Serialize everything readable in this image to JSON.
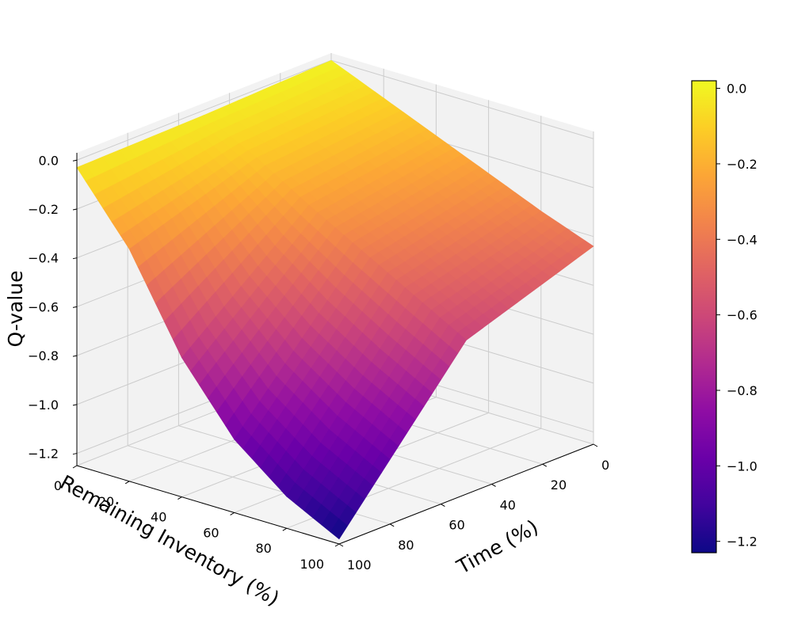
{
  "chart_data": {
    "type": "surface3d",
    "xlabel": "Remaining Inventory (%)",
    "ylabel": "Time (%)",
    "zlabel": "Q-value",
    "x_ticks": [
      0,
      20,
      40,
      60,
      80,
      100
    ],
    "y_ticks": [
      0,
      20,
      40,
      60,
      80,
      100
    ],
    "z_ticks": [
      "0.0",
      "−0.2",
      "−0.4",
      "−0.6",
      "−0.8",
      "−1.0",
      "−1.2"
    ],
    "z_tick_values": [
      0.0,
      -0.2,
      -0.4,
      -0.6,
      -0.8,
      -1.0,
      -1.2
    ],
    "xlim": [
      0,
      100
    ],
    "ylim": [
      0,
      100
    ],
    "zlim": [
      -1.25,
      0.03
    ],
    "colormap": "plasma",
    "colorbar": {
      "range": [
        -1.23,
        0.02
      ],
      "ticks": [
        "0.0",
        "−0.2",
        "−0.4",
        "−0.6",
        "−0.8",
        "−1.0",
        "−1.2"
      ],
      "tick_values": [
        0.0,
        -0.2,
        -0.4,
        -0.6,
        -0.8,
        -1.0,
        -1.2
      ]
    },
    "grid": true,
    "surface_corner_values": {
      "inventory_0_time_0": 0.0,
      "inventory_100_time_0": -0.44,
      "inventory_0_time_100": -0.03,
      "inventory_100_time_100": -1.23
    },
    "cross_sections": {
      "x": [
        0,
        20,
        40,
        60,
        80,
        100
      ],
      "series": [
        {
          "time": 0,
          "values": [
            0.0,
            -0.09,
            -0.18,
            -0.27,
            -0.36,
            -0.44
          ]
        },
        {
          "time": 50,
          "values": [
            -0.02,
            -0.13,
            -0.26,
            -0.38,
            -0.5,
            -0.62
          ]
        },
        {
          "time": 100,
          "values": [
            -0.03,
            -0.3,
            -0.68,
            -0.95,
            -1.12,
            -1.23
          ]
        }
      ]
    }
  }
}
